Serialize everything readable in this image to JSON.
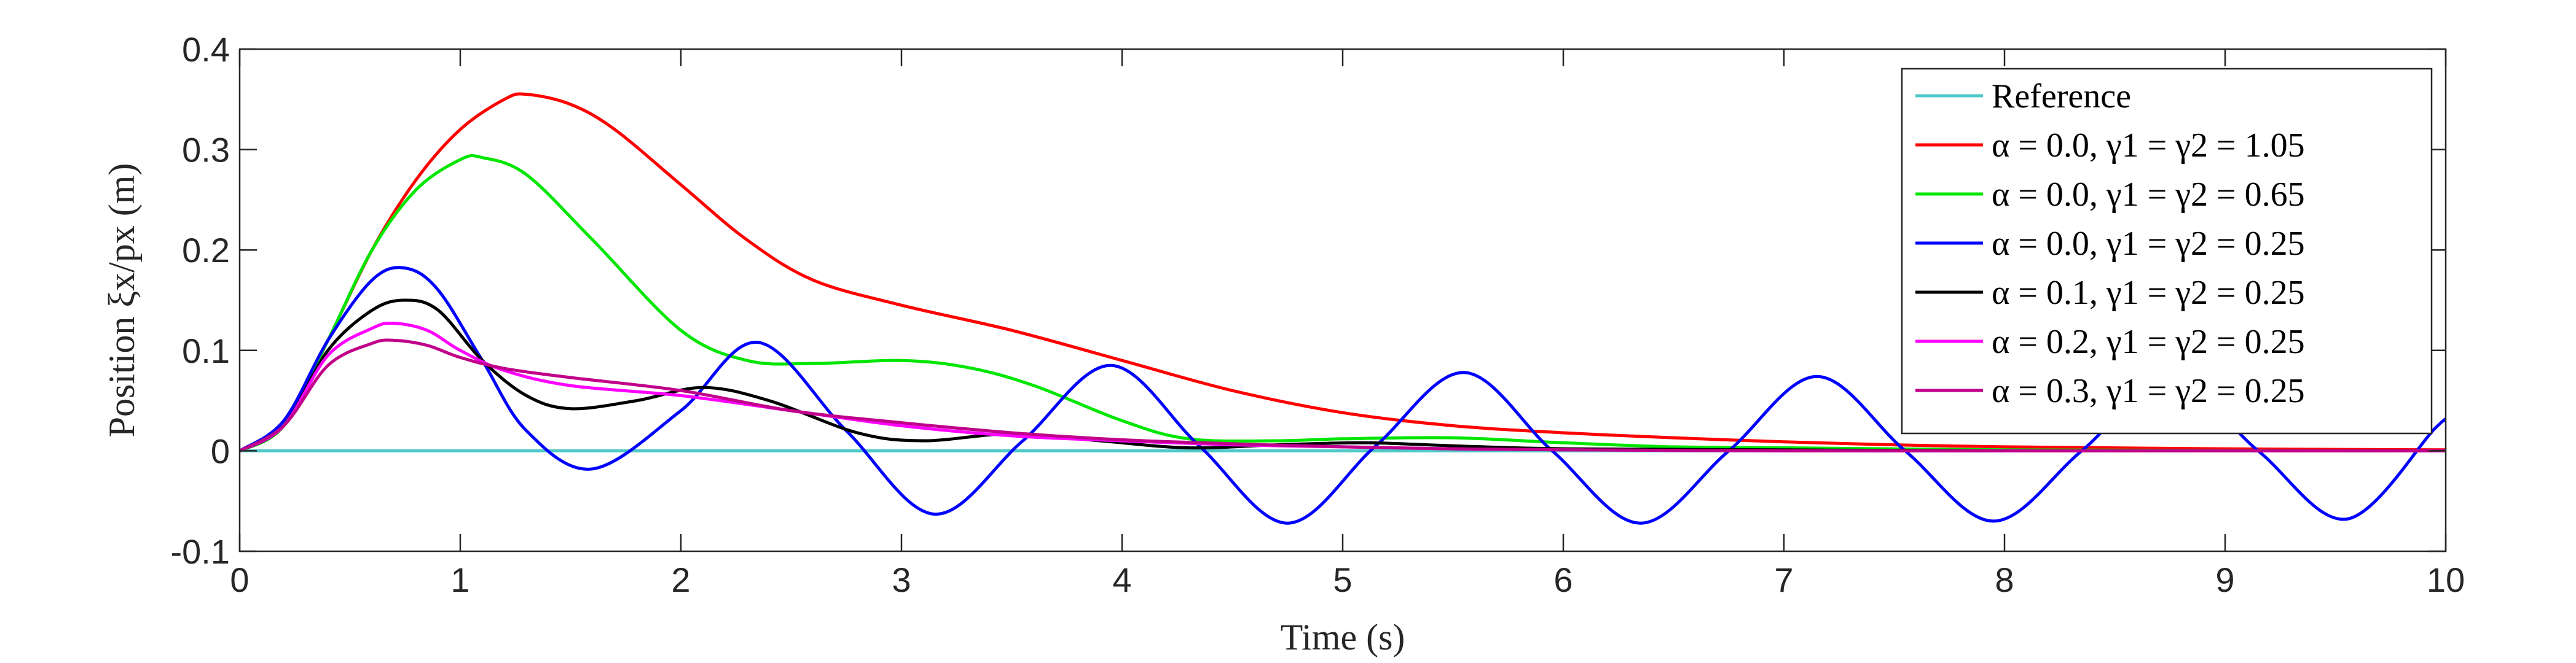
{
  "chart_data": {
    "type": "line",
    "xlabel": "Time (s)",
    "ylabel": "Position ξx/px (m)",
    "xlim": [
      0,
      10
    ],
    "ylim": [
      -0.1,
      0.4
    ],
    "xticks": [
      0,
      1,
      2,
      3,
      4,
      5,
      6,
      7,
      8,
      9,
      10
    ],
    "yticks": [
      -0.1,
      0,
      0.1,
      0.2,
      0.3,
      0.4
    ],
    "xtick_labels": [
      "0",
      "1",
      "2",
      "3",
      "4",
      "5",
      "6",
      "7",
      "8",
      "9",
      "10"
    ],
    "ytick_labels": [
      "-0.1",
      "0",
      "0.1",
      "0.2",
      "0.3",
      "0.4"
    ],
    "grid": false,
    "legend_position": "top-right",
    "series": [
      {
        "name": "Reference",
        "color": "#4fc8c8",
        "x": [
          0,
          10
        ],
        "y": [
          0,
          0
        ]
      },
      {
        "name": "α = 0.0, γ1 = γ2 = 1.05",
        "color": "#ff0000",
        "x": [
          0,
          0.2,
          0.4,
          0.6,
          0.8,
          1.0,
          1.2,
          1.3,
          1.5,
          1.7,
          2.0,
          2.3,
          2.6,
          3.0,
          3.5,
          4.0,
          4.5,
          5.0,
          5.5,
          6.0,
          6.5,
          7.0,
          7.5,
          8.0,
          9.0,
          10.0
        ],
        "y": [
          0,
          0.025,
          0.11,
          0.2,
          0.27,
          0.32,
          0.35,
          0.355,
          0.345,
          0.32,
          0.265,
          0.21,
          0.17,
          0.145,
          0.12,
          0.09,
          0.06,
          0.038,
          0.025,
          0.018,
          0.013,
          0.009,
          0.006,
          0.004,
          0.002,
          0.001
        ]
      },
      {
        "name": "α = 0.0, γ1 = γ2 = 0.65",
        "color": "#00e600",
        "x": [
          0,
          0.2,
          0.4,
          0.6,
          0.8,
          1.0,
          1.1,
          1.3,
          1.6,
          2.0,
          2.3,
          2.6,
          3.0,
          3.3,
          3.6,
          4.0,
          4.3,
          4.7,
          5.0,
          5.5,
          6.0,
          6.5,
          7.0,
          8.0,
          10.0
        ],
        "y": [
          0,
          0.025,
          0.11,
          0.2,
          0.26,
          0.29,
          0.292,
          0.275,
          0.21,
          0.12,
          0.09,
          0.087,
          0.09,
          0.083,
          0.065,
          0.03,
          0.012,
          0.01,
          0.012,
          0.013,
          0.008,
          0.004,
          0.003,
          0.001,
          0
        ]
      },
      {
        "name": "α = 0.0, γ1 = γ2 = 0.25",
        "color": "#0000ff",
        "x": [
          0,
          0.2,
          0.4,
          0.6,
          0.75,
          0.9,
          1.1,
          1.3,
          1.6,
          2.0,
          2.35,
          2.75,
          3.15,
          3.55,
          3.95,
          4.35,
          4.75,
          5.15,
          5.55,
          5.95,
          6.35,
          6.75,
          7.15,
          7.55,
          7.95,
          8.35,
          8.75,
          9.15,
          9.55,
          9.95,
          10.0
        ],
        "y": [
          0,
          0.03,
          0.11,
          0.17,
          0.182,
          0.16,
          0.09,
          0.02,
          -0.018,
          0.04,
          0.108,
          0.02,
          -0.063,
          0.01,
          0.085,
          0.005,
          -0.072,
          0.005,
          0.078,
          0.0,
          -0.072,
          0.0,
          0.074,
          0.0,
          -0.07,
          0.0,
          0.072,
          0.0,
          -0.068,
          0.022,
          0.03
        ]
      },
      {
        "name": "α = 0.1, γ1 = γ2 = 0.25",
        "color": "#000000",
        "x": [
          0,
          0.2,
          0.4,
          0.6,
          0.75,
          0.9,
          1.1,
          1.3,
          1.5,
          1.8,
          2.1,
          2.4,
          2.8,
          3.1,
          3.5,
          3.9,
          4.3,
          4.7,
          5.1,
          5.5,
          6.0,
          7.0,
          8.0,
          10.0
        ],
        "y": [
          0,
          0.025,
          0.1,
          0.14,
          0.15,
          0.14,
          0.09,
          0.055,
          0.042,
          0.05,
          0.063,
          0.05,
          0.018,
          0.01,
          0.017,
          0.01,
          0.003,
          0.006,
          0.008,
          0.005,
          0.002,
          0.001,
          0.0,
          0.0
        ]
      },
      {
        "name": "α = 0.2, γ1 = γ2 = 0.25",
        "color": "#ff00ff",
        "x": [
          0,
          0.2,
          0.4,
          0.6,
          0.7,
          0.85,
          1.0,
          1.2,
          1.5,
          2.0,
          2.5,
          3.0,
          3.5,
          4.0,
          4.5,
          5.0,
          5.5,
          6.0,
          7.0,
          8.0,
          10.0
        ],
        "y": [
          0,
          0.025,
          0.095,
          0.122,
          0.127,
          0.12,
          0.1,
          0.08,
          0.065,
          0.055,
          0.04,
          0.025,
          0.015,
          0.01,
          0.006,
          0.004,
          0.002,
          0.001,
          0.0,
          0.0,
          0.0
        ]
      },
      {
        "name": "α = 0.3, γ1 = γ2 = 0.25",
        "color": "#c0008a",
        "x": [
          0,
          0.2,
          0.4,
          0.6,
          0.7,
          0.85,
          1.0,
          1.2,
          1.5,
          2.0,
          2.5,
          3.0,
          3.5,
          4.0,
          4.5,
          5.0,
          5.5,
          6.0,
          7.0,
          8.0,
          10.0
        ],
        "y": [
          0,
          0.025,
          0.085,
          0.107,
          0.11,
          0.105,
          0.093,
          0.082,
          0.073,
          0.06,
          0.04,
          0.028,
          0.018,
          0.011,
          0.007,
          0.004,
          0.002,
          0.001,
          0.0,
          0.0,
          0.0
        ]
      }
    ]
  }
}
